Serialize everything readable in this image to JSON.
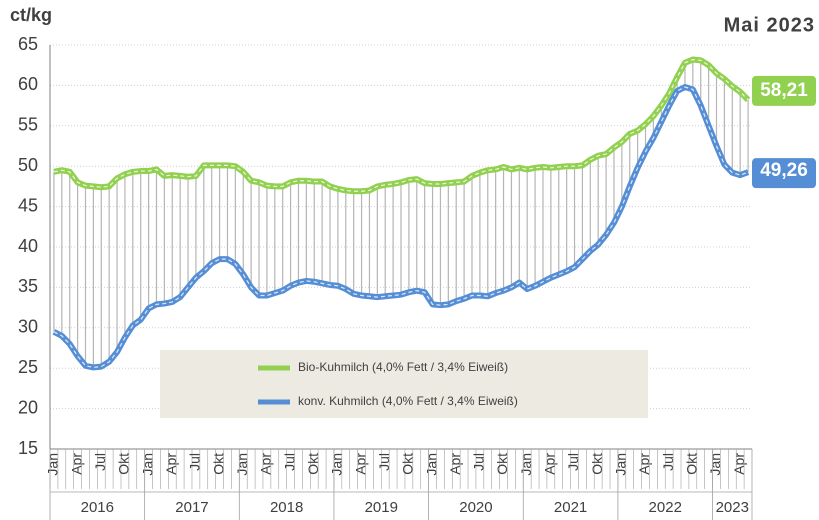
{
  "chart_data": {
    "type": "line",
    "title": "Mai 2023",
    "y_label": "ct/kg",
    "categories": [
      "Jan",
      null,
      null,
      "Apr",
      null,
      null,
      "Jul",
      null,
      null,
      "Okt",
      null,
      null,
      "Jan",
      null,
      null,
      "Apr",
      null,
      null,
      "Jul",
      null,
      null,
      "Okt",
      null,
      null,
      "Jan",
      null,
      null,
      "Apr",
      null,
      null,
      "Jul",
      null,
      null,
      "Okt",
      null,
      null,
      "Jan",
      null,
      null,
      "Apr",
      null,
      null,
      "Jul",
      null,
      null,
      "Okt",
      null,
      null,
      "Jan",
      null,
      null,
      "Apr",
      null,
      null,
      "Jul",
      null,
      null,
      "Okt",
      null,
      null,
      "Jan",
      null,
      null,
      "Apr",
      null,
      null,
      "Jul",
      null,
      null,
      "Okt",
      null,
      null,
      "Jan",
      null,
      null,
      "Apr",
      null,
      null,
      "Jul",
      null,
      null,
      "Okt",
      null,
      null,
      "Jan",
      null,
      null,
      "Apr",
      null
    ],
    "years": [
      "2016",
      "2017",
      "2018",
      "2019",
      "2020",
      "2021",
      "2022",
      "2023"
    ],
    "series": [
      {
        "name": "Bio-Kuhmilch (4,0% Fett / 3,4% Eiweiß)",
        "color": "#92d050",
        "end_label": "58,21",
        "values": [
          49.3,
          49.5,
          49.3,
          48.0,
          47.6,
          47.5,
          47.4,
          47.5,
          48.5,
          49.0,
          49.3,
          49.4,
          49.4,
          49.6,
          48.8,
          48.9,
          48.8,
          48.7,
          48.8,
          50.1,
          50.1,
          50.1,
          50.1,
          50.0,
          49.3,
          48.2,
          48.0,
          47.6,
          47.5,
          47.5,
          48.0,
          48.2,
          48.2,
          48.1,
          48.1,
          47.5,
          47.2,
          47.0,
          46.9,
          46.9,
          47.0,
          47.5,
          47.7,
          47.8,
          48.0,
          48.3,
          48.4,
          47.9,
          47.8,
          47.8,
          47.9,
          48.0,
          48.1,
          48.8,
          49.2,
          49.5,
          49.6,
          49.9,
          49.6,
          49.8,
          49.6,
          49.8,
          49.9,
          49.8,
          49.9,
          50.0,
          50.0,
          50.1,
          50.8,
          51.3,
          51.5,
          52.3,
          53.0,
          54.0,
          54.4,
          55.2,
          56.2,
          57.5,
          59.0,
          61.0,
          62.8,
          63.2,
          63.1,
          62.5,
          61.5,
          60.8,
          59.9,
          59.2,
          58.21
        ]
      },
      {
        "name": "konv. Kuhmilch (4,0% Fett / 3,4% Eiweiß)",
        "color": "#558ed5",
        "end_label": "49,26",
        "values": [
          29.5,
          29.0,
          28.0,
          26.5,
          25.3,
          25.1,
          25.2,
          25.8,
          27.0,
          28.8,
          30.3,
          31.0,
          32.4,
          32.9,
          33.0,
          33.2,
          33.8,
          35.0,
          36.2,
          37.0,
          38.0,
          38.5,
          38.5,
          37.9,
          36.6,
          35.0,
          34.0,
          34.0,
          34.3,
          34.6,
          35.2,
          35.6,
          35.8,
          35.7,
          35.5,
          35.3,
          35.2,
          34.8,
          34.2,
          34.0,
          33.9,
          33.8,
          33.9,
          34.0,
          34.1,
          34.4,
          34.6,
          34.4,
          32.9,
          32.8,
          32.9,
          33.3,
          33.6,
          34.0,
          34.0,
          33.9,
          34.3,
          34.6,
          35.0,
          35.6,
          34.8,
          35.2,
          35.7,
          36.2,
          36.6,
          37.0,
          37.5,
          38.5,
          39.5,
          40.3,
          41.5,
          43.0,
          45.0,
          47.5,
          49.8,
          51.8,
          53.5,
          55.5,
          57.5,
          59.3,
          59.8,
          59.5,
          57.5,
          55.0,
          52.5,
          50.2,
          49.2,
          48.9,
          49.26
        ]
      }
    ],
    "ylim": [
      15,
      65
    ],
    "yticks": [
      15,
      20,
      25,
      30,
      35,
      40,
      45,
      50,
      55,
      60,
      65
    ],
    "grid": true
  }
}
